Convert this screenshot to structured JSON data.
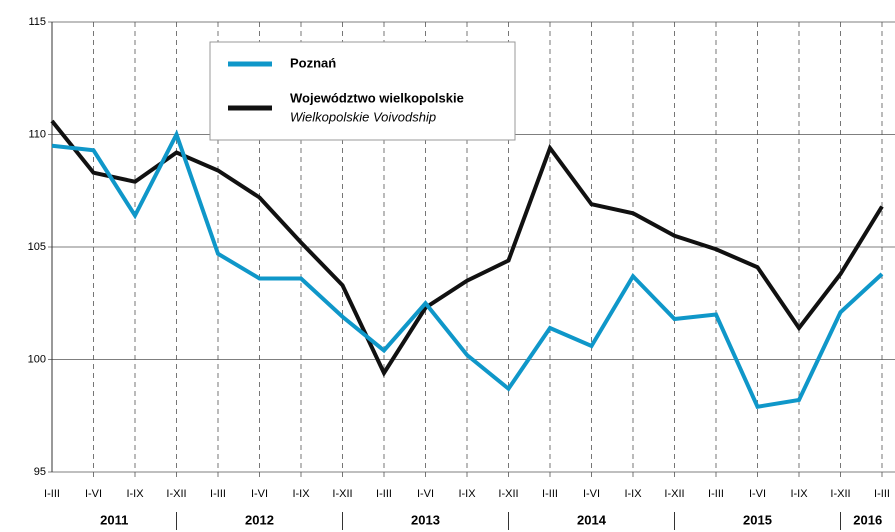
{
  "chart_data": {
    "type": "line",
    "categories": [
      "I-III",
      "I-VI",
      "I-IX",
      "I-XII",
      "I-III",
      "I-VI",
      "I-IX",
      "I-XII",
      "I-III",
      "I-VI",
      "I-IX",
      "I-XII",
      "I-III",
      "I-VI",
      "I-IX",
      "I-XII",
      "I-III",
      "I-VI",
      "I-IX",
      "I-XII",
      "I-III"
    ],
    "year_groups": [
      "2011",
      "2012",
      "2013",
      "2014",
      "2015",
      "2016"
    ],
    "series": [
      {
        "name": "Poznań",
        "color": "#0f97c9",
        "values": [
          109.5,
          109.3,
          106.4,
          110.0,
          104.7,
          103.6,
          103.6,
          101.9,
          100.4,
          102.5,
          100.2,
          98.7,
          101.4,
          100.6,
          103.7,
          101.8,
          102.0,
          97.9,
          98.2,
          102.1,
          103.8
        ]
      },
      {
        "name": "Województwo wielkopolskie",
        "subtitle": "Wielkopolskie Voivodship",
        "color": "#111111",
        "values": [
          110.6,
          108.3,
          107.9,
          109.2,
          108.4,
          107.2,
          105.2,
          103.3,
          99.4,
          102.3,
          103.5,
          104.4,
          109.4,
          106.9,
          106.5,
          105.5,
          104.9,
          104.1,
          101.4,
          103.8,
          106.8
        ]
      }
    ],
    "ylim": [
      95,
      115
    ],
    "yticks": [
      95,
      100,
      105,
      110,
      115
    ],
    "grid": true
  }
}
